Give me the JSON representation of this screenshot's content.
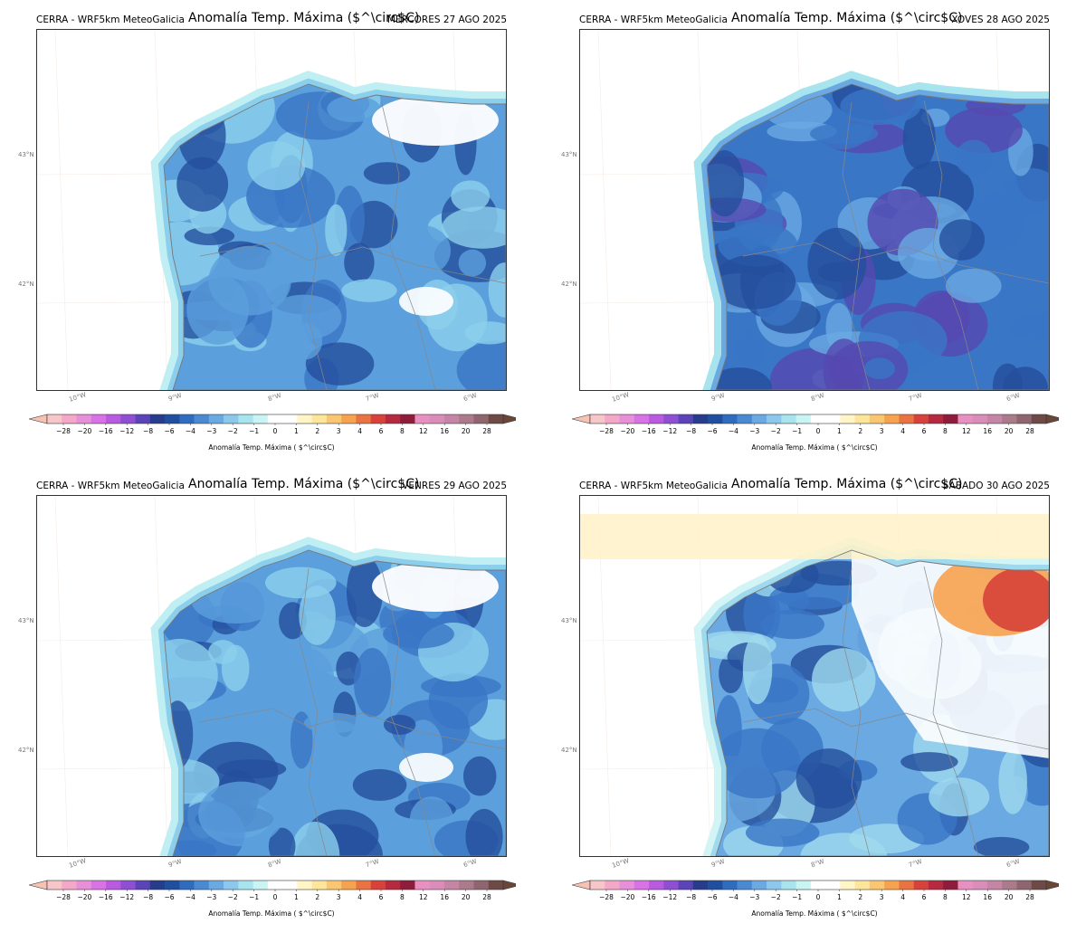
{
  "panels": [
    {
      "source": "CERRA - WRF5km MeteoGalicia",
      "title": "Anomalía Temp. Máxima ($^\\circ$C)",
      "date": "MÉRCORES 27 AGO 2025",
      "scenario": "cool"
    },
    {
      "source": "CERRA - WRF5km MeteoGalicia",
      "title": "Anomalía Temp. Máxima ($^\\circ$C)",
      "date": "XOVES 28 AGO 2025",
      "scenario": "cold"
    },
    {
      "source": "CERRA - WRF5km MeteoGalicia",
      "title": "Anomalía Temp. Máxima ($^\\circ$C)",
      "date": "VENRES 29 AGO 2025",
      "scenario": "cool"
    },
    {
      "source": "CERRA - WRF5km MeteoGalicia",
      "title": "Anomalía Temp. Máxima ($^\\circ$C)",
      "date": "SÁBADO 30 AGO 2025",
      "scenario": "mixed"
    }
  ],
  "lat_labels": [
    "43°N",
    "42°N"
  ],
  "lon_labels": [
    "10°W",
    "9°W",
    "8°W",
    "7°W",
    "6°W"
  ],
  "colorbar": {
    "label": "Anomalía Temp. Máxima ( $^\\circ$C)",
    "ticks": [
      "−28",
      "−20",
      "−16",
      "−12",
      "−8",
      "−6",
      "−4",
      "−3",
      "−2",
      "−1",
      "0",
      "1",
      "2",
      "3",
      "4",
      "6",
      "8",
      "12",
      "16",
      "20",
      "28"
    ],
    "colors": [
      "#f7c6c9",
      "#f3a8c8",
      "#e78fd9",
      "#d972e6",
      "#b85be0",
      "#8f4fd4",
      "#5a44b8",
      "#283c8e",
      "#1f4f9e",
      "#2f6bbf",
      "#4a8ad3",
      "#6aa9e2",
      "#8cc8ec",
      "#a7e4ee",
      "#c9f4f4",
      "#ffffff",
      "#ffffff",
      "#fff5c7",
      "#fde59a",
      "#fbc672",
      "#f6a24f",
      "#ea7342",
      "#d7433a",
      "#b52a3f",
      "#8f1c3a",
      "#e890c2",
      "#d98db8",
      "#c486a4",
      "#ab7a8b",
      "#8f6670",
      "#6e4a46"
    ],
    "under": "#f6c2b2",
    "over": "#6a4636"
  }
}
